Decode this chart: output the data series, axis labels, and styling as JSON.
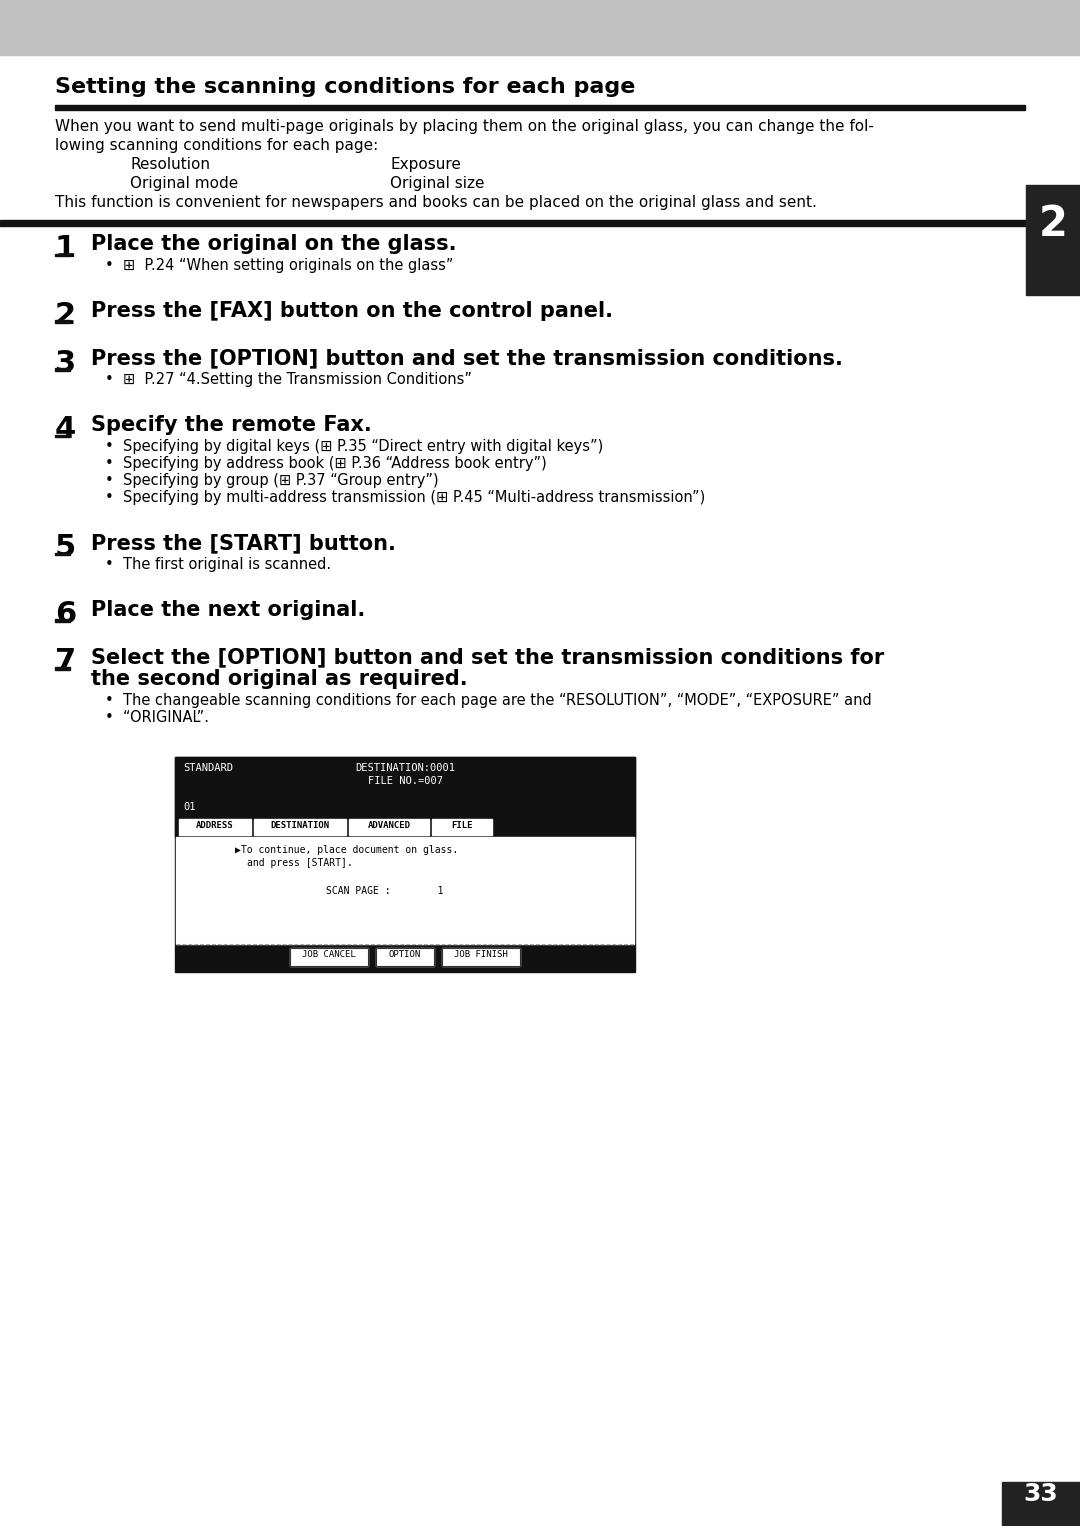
{
  "page_bg": "#ffffff",
  "header_bg": "#c0c0c0",
  "title": "Setting the scanning conditions for each page",
  "intro_lines": [
    "When you want to send multi-page originals by placing them on the original glass, you can change the fol-",
    "lowing scanning conditions for each page:"
  ],
  "conditions": [
    [
      "Resolution",
      "Exposure"
    ],
    [
      "Original mode",
      "Original size"
    ]
  ],
  "intro_last": "This function is convenient for newspapers and books can be placed on the original glass and sent.",
  "side_tab_label": "2",
  "side_tab_bg": "#222222",
  "side_tab_text": "#ffffff",
  "page_number": "33",
  "page_number_bg": "#222222",
  "page_number_text": "#ffffff",
  "steps": [
    {
      "num": "1",
      "heading": "Place the original on the glass.",
      "bullets": [
        "⊞  P.24 “When setting originals on the glass”"
      ],
      "has_screen": false
    },
    {
      "num": "2",
      "heading": "Press the [FAX] button on the control panel.",
      "bullets": [],
      "has_screen": false
    },
    {
      "num": "3",
      "heading": "Press the [OPTION] button and set the transmission conditions.",
      "bullets": [
        "⊞  P.27 “4.Setting the Transmission Conditions”"
      ],
      "has_screen": false
    },
    {
      "num": "4",
      "heading": "Specify the remote Fax.",
      "bullets": [
        "Specifying by digital keys (⊞ P.35 “Direct entry with digital keys”)",
        "Specifying by address book (⊞ P.36 “Address book entry”)",
        "Specifying by group (⊞ P.37 “Group entry”)",
        "Specifying by multi-address transmission (⊞ P.45 “Multi-address transmission”)"
      ],
      "has_screen": false
    },
    {
      "num": "5",
      "heading": "Press the [START] button.",
      "bullets": [
        "The first original is scanned."
      ],
      "has_screen": false
    },
    {
      "num": "6",
      "heading": "Place the next original.",
      "bullets": [],
      "has_screen": false
    },
    {
      "num": "7",
      "heading_lines": [
        "Select the [OPTION] button and set the transmission conditions for",
        "the second original as required."
      ],
      "bullets": [
        "The changeable scanning conditions for each page are the “RESOLUTION”, “MODE”, “EXPOSURE” and",
        "“ORIGINAL”."
      ],
      "has_screen": true
    }
  ]
}
